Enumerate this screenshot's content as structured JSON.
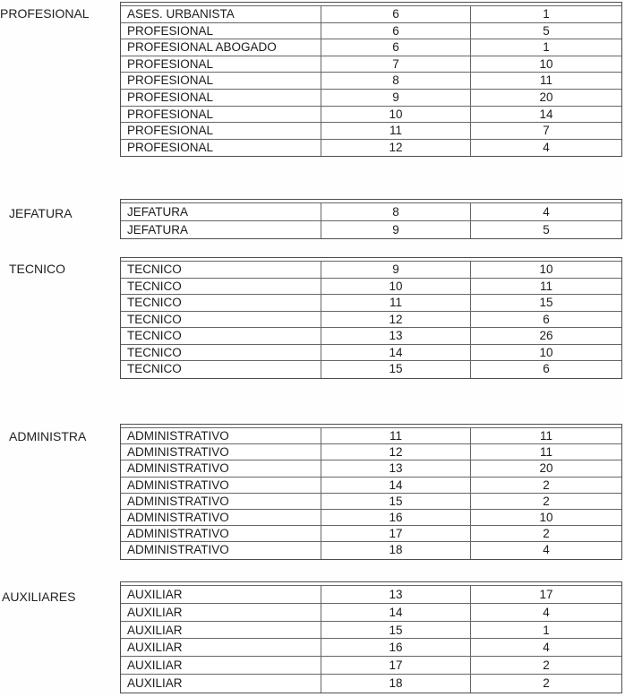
{
  "page": {
    "background": "#ffffff",
    "border_color": "#666666",
    "text_color": "#1c1c1c"
  },
  "groups": [
    {
      "label": "PROFESIONAL",
      "rows": [
        [
          "ASES. URBANISTA",
          "6",
          "1"
        ],
        [
          "PROFESIONAL",
          "6",
          "5"
        ],
        [
          "PROFESIONAL ABOGADO",
          "6",
          "1"
        ],
        [
          "PROFESIONAL",
          "7",
          "10"
        ],
        [
          "PROFESIONAL",
          "8",
          "11"
        ],
        [
          "PROFESIONAL",
          "9",
          "20"
        ],
        [
          "PROFESIONAL",
          "10",
          "14"
        ],
        [
          "PROFESIONAL",
          "11",
          "7"
        ],
        [
          "PROFESIONAL",
          "12",
          "4"
        ]
      ]
    },
    {
      "label": "JEFATURA",
      "rows": [
        [
          "JEFATURA",
          "8",
          "4"
        ],
        [
          "JEFATURA",
          "9",
          "5"
        ]
      ]
    },
    {
      "label": "TECNICO",
      "rows": [
        [
          "TECNICO",
          "9",
          "10"
        ],
        [
          "TECNICO",
          "10",
          "11"
        ],
        [
          "TECNICO",
          "11",
          "15"
        ],
        [
          "TECNICO",
          "12",
          "6"
        ],
        [
          "TECNICO",
          "13",
          "26"
        ],
        [
          "TECNICO",
          "14",
          "10"
        ],
        [
          "TECNICO",
          "15",
          "6"
        ]
      ]
    },
    {
      "label": "ADMINISTRA",
      "rows": [
        [
          "ADMINISTRATIVO",
          "11",
          "11"
        ],
        [
          "ADMINISTRATIVO",
          "12",
          "11"
        ],
        [
          "ADMINISTRATIVO",
          "13",
          "20"
        ],
        [
          "ADMINISTRATIVO",
          "14",
          "2"
        ],
        [
          "ADMINISTRATIVO",
          "15",
          "2"
        ],
        [
          "ADMINISTRATIVO",
          "16",
          "10"
        ],
        [
          "ADMINISTRATIVO",
          "17",
          "2"
        ],
        [
          "ADMINISTRATIVO",
          "18",
          "4"
        ]
      ]
    },
    {
      "label": "AUXILIARES",
      "rows": [
        [
          "AUXILIAR",
          "13",
          "17"
        ],
        [
          "AUXILIAR",
          "14",
          "4"
        ],
        [
          "AUXILIAR",
          "15",
          "1"
        ],
        [
          "AUXILIAR",
          "16",
          "4"
        ],
        [
          "AUXILIAR",
          "17",
          "2"
        ],
        [
          "AUXILIAR",
          "18",
          "2"
        ]
      ]
    }
  ]
}
